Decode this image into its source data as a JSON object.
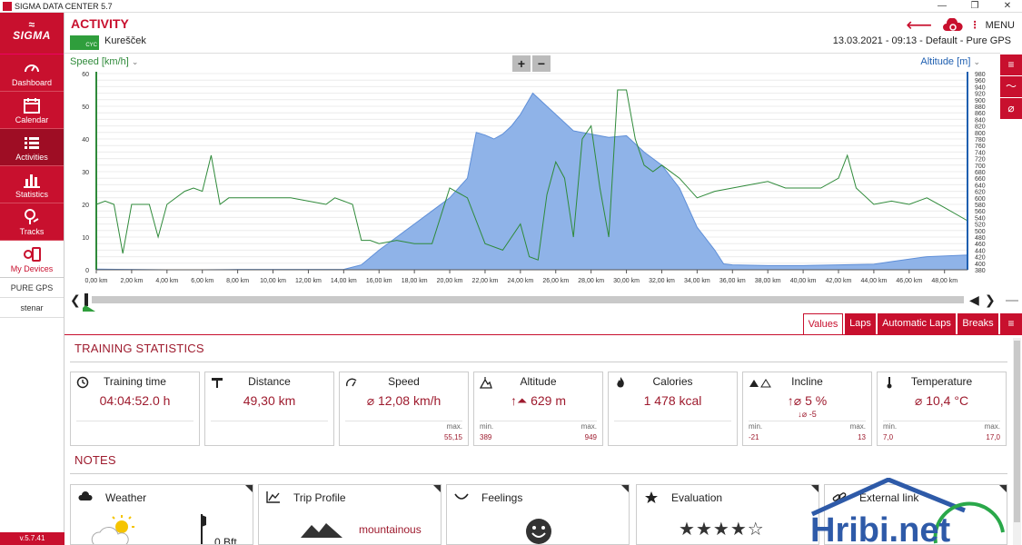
{
  "window": {
    "title": "SIGMA DATA CENTER 5.7"
  },
  "sidebar": {
    "brand": "SIGMA",
    "items": [
      {
        "label": "Dashboard",
        "icon": "gauge-icon"
      },
      {
        "label": "Calendar",
        "icon": "calendar-icon"
      },
      {
        "label": "Activities",
        "icon": "list-icon"
      },
      {
        "label": "Statistics",
        "icon": "bar-chart-icon"
      },
      {
        "label": "Tracks",
        "icon": "map-pin-icon"
      },
      {
        "label": "My Devices",
        "icon": "devices-icon"
      }
    ],
    "device": "PURE GPS",
    "user": "stenar",
    "version": "v.5.7.41"
  },
  "header": {
    "title": "ACTIVITY",
    "sport_badge": "CYC",
    "ride_name": "Kurešček",
    "info": "13.03.2021  -  09:13  -  Default  -  Pure GPS",
    "menu_label": "MENU"
  },
  "chart": {
    "left_axis_label": "Speed [km/h]",
    "right_axis_label": "Altitude [m]",
    "zoom_in": "+",
    "zoom_out": "−"
  },
  "chart_data": {
    "type": "area",
    "xlabel": "",
    "x_unit": "km",
    "xlim": [
      0,
      49.3
    ],
    "x_ticks": [
      "0,00 km",
      "2,00 km",
      "4,00 km",
      "6,00 km",
      "8,00 km",
      "10,00 km",
      "12,00 km",
      "14,00 km",
      "16,00 km",
      "18,00 km",
      "20,00 km",
      "22,00 km",
      "24,00 km",
      "26,00 km",
      "28,00 km",
      "30,00 km",
      "32,00 km",
      "34,00 km",
      "36,00 km",
      "38,00 km",
      "40,00 km",
      "42,00 km",
      "44,00 km",
      "46,00 km",
      "48,00 km"
    ],
    "y_left": {
      "label": "Speed [km/h]",
      "ylim": [
        0,
        60
      ],
      "ticks": [
        "0",
        "10",
        "20",
        "30",
        "40",
        "50",
        "60"
      ]
    },
    "y_right": {
      "label": "Altitude [m]",
      "ylim": [
        380,
        980
      ],
      "ticks": [
        "380",
        "400",
        "420",
        "440",
        "460",
        "480",
        "500",
        "520",
        "540",
        "560",
        "580",
        "600",
        "620",
        "640",
        "660",
        "680",
        "700",
        "720",
        "740",
        "760",
        "780",
        "800",
        "820",
        "840",
        "860",
        "880",
        "900",
        "920",
        "940",
        "960",
        "980"
      ]
    },
    "series": [
      {
        "name": "Altitude [m]",
        "color": "#8fb3e8",
        "axis": "right",
        "points": [
          [
            0,
            382
          ],
          [
            2,
            381
          ],
          [
            4,
            380
          ],
          [
            6,
            380
          ],
          [
            8,
            381
          ],
          [
            10,
            381
          ],
          [
            12,
            381
          ],
          [
            14,
            381
          ],
          [
            15,
            395
          ],
          [
            16,
            440
          ],
          [
            17,
            480
          ],
          [
            18,
            520
          ],
          [
            19,
            560
          ],
          [
            20,
            600
          ],
          [
            21,
            660
          ],
          [
            21.5,
            800
          ],
          [
            22,
            792
          ],
          [
            22.5,
            780
          ],
          [
            23,
            795
          ],
          [
            23.5,
            820
          ],
          [
            24,
            855
          ],
          [
            24.7,
            920
          ],
          [
            25.5,
            880
          ],
          [
            26.5,
            830
          ],
          [
            27,
            805
          ],
          [
            28,
            795
          ],
          [
            29,
            785
          ],
          [
            30,
            790
          ],
          [
            31,
            740
          ],
          [
            32,
            700
          ],
          [
            33,
            630
          ],
          [
            34,
            510
          ],
          [
            35,
            440
          ],
          [
            35.5,
            398
          ],
          [
            36,
            395
          ],
          [
            38,
            393
          ],
          [
            40,
            393
          ],
          [
            42,
            395
          ],
          [
            44,
            397
          ],
          [
            45,
            405
          ],
          [
            47,
            420
          ],
          [
            49.3,
            425
          ]
        ]
      },
      {
        "name": "Speed [km/h]",
        "color": "#2f8a3a",
        "axis": "left",
        "points": [
          [
            0,
            20
          ],
          [
            0.5,
            21
          ],
          [
            1,
            20
          ],
          [
            1.5,
            5
          ],
          [
            2,
            20
          ],
          [
            3,
            20
          ],
          [
            3.5,
            10
          ],
          [
            4,
            20
          ],
          [
            5,
            24
          ],
          [
            5.5,
            25
          ],
          [
            6,
            24
          ],
          [
            6.5,
            35
          ],
          [
            7,
            20
          ],
          [
            7.5,
            22
          ],
          [
            8,
            22
          ],
          [
            9,
            22
          ],
          [
            10,
            22
          ],
          [
            11,
            22
          ],
          [
            12,
            21
          ],
          [
            13,
            20
          ],
          [
            13.5,
            22
          ],
          [
            14,
            21
          ],
          [
            14.5,
            20
          ],
          [
            15,
            9
          ],
          [
            15.5,
            9
          ],
          [
            16,
            8
          ],
          [
            17,
            9
          ],
          [
            18,
            8
          ],
          [
            19,
            8
          ],
          [
            20,
            25
          ],
          [
            21,
            22
          ],
          [
            22,
            8
          ],
          [
            23,
            6
          ],
          [
            24,
            14
          ],
          [
            24.5,
            4
          ],
          [
            25,
            3
          ],
          [
            25.5,
            23
          ],
          [
            26,
            33
          ],
          [
            26.5,
            28
          ],
          [
            27,
            10
          ],
          [
            27.5,
            40
          ],
          [
            28,
            44
          ],
          [
            28.5,
            25
          ],
          [
            29,
            10
          ],
          [
            29.5,
            55
          ],
          [
            30,
            55
          ],
          [
            30.5,
            40
          ],
          [
            31,
            32
          ],
          [
            31.5,
            30
          ],
          [
            32,
            32
          ],
          [
            33,
            28
          ],
          [
            34,
            22
          ],
          [
            35,
            24
          ],
          [
            36,
            25
          ],
          [
            37,
            26
          ],
          [
            38,
            27
          ],
          [
            39,
            25
          ],
          [
            40,
            25
          ],
          [
            41,
            25
          ],
          [
            42,
            28
          ],
          [
            42.5,
            35
          ],
          [
            43,
            25
          ],
          [
            44,
            20
          ],
          [
            45,
            21
          ],
          [
            46,
            20
          ],
          [
            47,
            22
          ],
          [
            48,
            19
          ],
          [
            49.3,
            15
          ]
        ]
      }
    ],
    "grid": true
  },
  "timeline": {
    "prev": "❮",
    "next": "❯"
  },
  "tabs": [
    {
      "label": "Values",
      "active": true
    },
    {
      "label": "Laps",
      "active": false
    },
    {
      "label": "Automatic Laps",
      "active": false
    },
    {
      "label": "Breaks",
      "active": false
    }
  ],
  "training_statistics": {
    "title": "TRAINING STATISTICS",
    "cards": [
      {
        "label": "Training time",
        "value": "04:04:52.0 h",
        "sub": "",
        "min_label": "",
        "min": "",
        "max_label": "",
        "max": "",
        "icon": "clock-icon"
      },
      {
        "label": "Distance",
        "value": "49,30 km",
        "sub": "",
        "min_label": "",
        "min": "",
        "max_label": "",
        "max": "",
        "icon": "signpost-icon"
      },
      {
        "label": "Speed",
        "value": "⌀ 12,08 km/h",
        "sub": "",
        "min_label": "",
        "min": "",
        "max_label": "max.",
        "max": "55,15",
        "icon": "speedometer-icon"
      },
      {
        "label": "Altitude",
        "value": "↑⏶ 629 m",
        "sub": "",
        "min_label": "min.",
        "min": "389",
        "max_label": "max.",
        "max": "949",
        "icon": "mountain-icon"
      },
      {
        "label": "Calories",
        "value": "1 478 kcal",
        "sub": "",
        "min_label": "",
        "min": "",
        "max_label": "",
        "max": "",
        "icon": "flame-icon"
      },
      {
        "label": "Incline",
        "value": "↑⌀ 5 %",
        "sub": "↓⌀  -5",
        "min_label": "min.",
        "min": "-21",
        "max_label": "max.",
        "max": "13",
        "icon": "incline-icon"
      },
      {
        "label": "Temperature",
        "value": "⌀ 10,4 °C",
        "sub": "",
        "min_label": "min.",
        "min": "7,0",
        "max_label": "max.",
        "max": "17,0",
        "icon": "thermometer-icon"
      }
    ]
  },
  "notes": {
    "title": "NOTES",
    "cards": [
      {
        "label": "Weather",
        "value": "0 Bft",
        "icon": "cloud-icon"
      },
      {
        "label": "Trip Profile",
        "value": "mountainous",
        "icon": "profile-icon"
      },
      {
        "label": "Feelings",
        "value": "",
        "icon": "smile-curve-icon"
      },
      {
        "label": "Evaluation",
        "value": "",
        "rating": 4,
        "rating_max": 5,
        "icon": "star-icon"
      },
      {
        "label": "External link",
        "value": "",
        "icon": "link-icon"
      }
    ]
  },
  "watermark": {
    "text": "Hribi.net"
  },
  "colors": {
    "brand": "#c8102e",
    "brand_dark": "#9e0d24",
    "speed": "#2f8a3a",
    "altitude": "#1f5fb0",
    "altitude_fill": "#8fb3e8"
  }
}
